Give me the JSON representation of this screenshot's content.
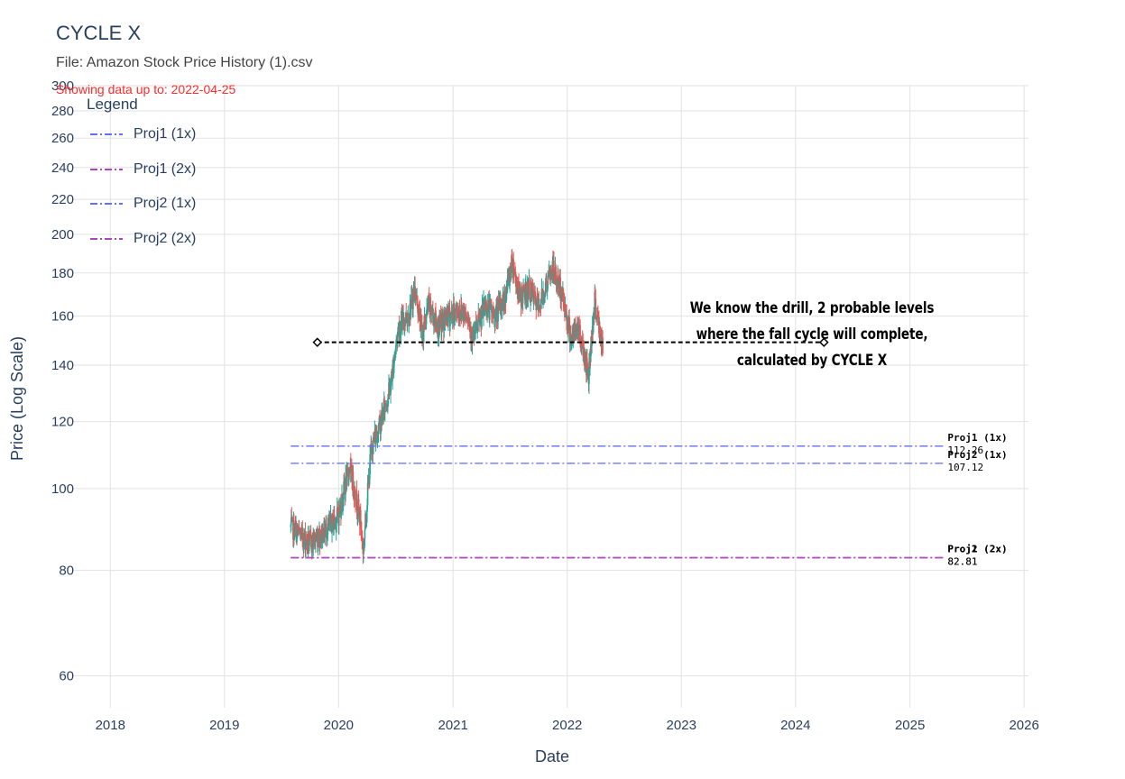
{
  "header": {
    "title": "CYCLE X",
    "file_label": "File: Amazon Stock Price History (1).csv",
    "showing_label": "Showing data up to: 2022-04-25"
  },
  "legend": {
    "title": "Legend",
    "items": [
      {
        "label": "Proj1 (1x)",
        "color": "#636efa"
      },
      {
        "label": "Proj1 (2x)",
        "color": "#ab47bc"
      },
      {
        "label": "Proj2 (1x)",
        "color": "#636efa"
      },
      {
        "label": "Proj2 (2x)",
        "color": "#ab47bc"
      }
    ]
  },
  "annotation": {
    "lines": [
      "We know the drill, 2 probable levels",
      "where the fall cycle will complete,",
      "calculated by CYCLE X"
    ]
  },
  "chart_data": {
    "type": "candlestick",
    "title": "CYCLE X",
    "subtitle": "File: Amazon Stock Price History (1).csv",
    "xlabel": "Date",
    "ylabel": "Price (Log Scale)",
    "y_scale": "log",
    "xlim": [
      "2017-09-01",
      "2026-01-15"
    ],
    "ylim": [
      55,
      300
    ],
    "grid": true,
    "legend_position": "top-left",
    "up_color": "#26a69a",
    "down_color": "#ef5350",
    "x_ticks": [
      "2018",
      "2019",
      "2020",
      "2021",
      "2022",
      "2023",
      "2024",
      "2025",
      "2026"
    ],
    "y_ticks": [
      60,
      80,
      100,
      120,
      140,
      160,
      180,
      200,
      220,
      240,
      260,
      280,
      300
    ],
    "price_path": [
      {
        "date": "2019-08-01",
        "price": 90
      },
      {
        "date": "2019-09-01",
        "price": 88
      },
      {
        "date": "2019-10-01",
        "price": 86
      },
      {
        "date": "2019-11-01",
        "price": 88
      },
      {
        "date": "2019-12-01",
        "price": 90
      },
      {
        "date": "2020-01-01",
        "price": 93
      },
      {
        "date": "2020-02-05",
        "price": 106
      },
      {
        "date": "2020-03-10",
        "price": 92
      },
      {
        "date": "2020-03-20",
        "price": 84
      },
      {
        "date": "2020-04-15",
        "price": 112
      },
      {
        "date": "2020-05-15",
        "price": 120
      },
      {
        "date": "2020-06-15",
        "price": 132
      },
      {
        "date": "2020-07-10",
        "price": 155
      },
      {
        "date": "2020-08-15",
        "price": 162
      },
      {
        "date": "2020-09-01",
        "price": 172
      },
      {
        "date": "2020-09-25",
        "price": 152
      },
      {
        "date": "2020-10-15",
        "price": 165
      },
      {
        "date": "2020-11-15",
        "price": 155
      },
      {
        "date": "2020-12-15",
        "price": 160
      },
      {
        "date": "2021-01-15",
        "price": 162
      },
      {
        "date": "2021-02-15",
        "price": 162
      },
      {
        "date": "2021-03-05",
        "price": 150
      },
      {
        "date": "2021-04-15",
        "price": 165
      },
      {
        "date": "2021-05-15",
        "price": 160
      },
      {
        "date": "2021-06-15",
        "price": 168
      },
      {
        "date": "2021-07-10",
        "price": 186
      },
      {
        "date": "2021-08-01",
        "price": 168
      },
      {
        "date": "2021-09-01",
        "price": 172
      },
      {
        "date": "2021-10-01",
        "price": 164
      },
      {
        "date": "2021-11-15",
        "price": 182
      },
      {
        "date": "2021-12-15",
        "price": 170
      },
      {
        "date": "2022-01-15",
        "price": 150
      },
      {
        "date": "2022-02-05",
        "price": 156
      },
      {
        "date": "2022-03-10",
        "price": 136
      },
      {
        "date": "2022-03-30",
        "price": 166
      },
      {
        "date": "2022-04-25",
        "price": 145
      }
    ],
    "horizontal_lines": [
      {
        "name": "Proj1 (1x)",
        "value": 112.26,
        "value_label": "112.26",
        "color": "#636efa",
        "x_start": "2019-08-01",
        "x_end": "2025-04-20"
      },
      {
        "name": "Proj2 (1x)",
        "value": 107.12,
        "value_label": "107.12",
        "color": "#636efa",
        "x_start": "2019-08-01",
        "x_end": "2025-04-20"
      },
      {
        "name": "Proj1 (2x)",
        "value": 82.81,
        "value_label": "82.81",
        "color": "#ab47bc",
        "x_start": "2019-08-01",
        "x_end": "2025-04-20"
      },
      {
        "name": "Proj2 (2x)",
        "value": 82.81,
        "value_label": "82.81",
        "color": "#ab47bc",
        "x_start": "2019-08-01",
        "x_end": "2025-04-20"
      }
    ],
    "drawn_line": {
      "start": {
        "date": "2019-10-25",
        "price": 149
      },
      "end": {
        "date": "2024-04-01",
        "price": 149
      },
      "color": "#000000",
      "style": "dashed"
    }
  }
}
